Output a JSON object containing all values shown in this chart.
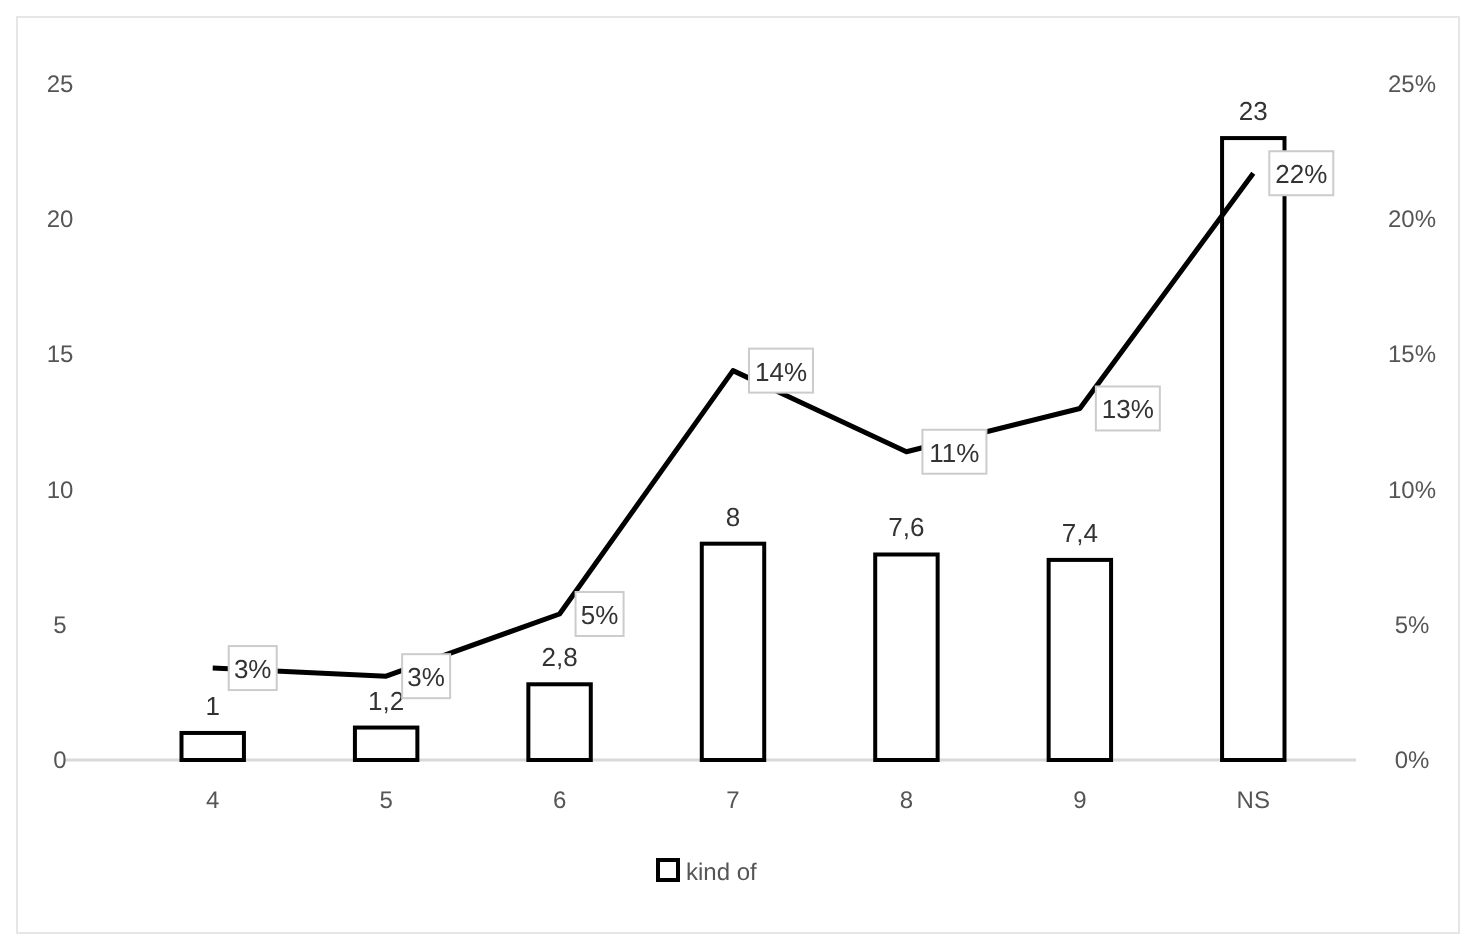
{
  "chart_data": {
    "type": "bar",
    "categories": [
      "4",
      "5",
      "6",
      "7",
      "8",
      "9",
      "NS"
    ],
    "series": [
      {
        "name": "kind of",
        "color": "#ffffff",
        "values": [
          1,
          1.2,
          2.8,
          8,
          7.6,
          7.4,
          23
        ],
        "value_labels": [
          "1",
          "1,2",
          "2,8",
          "8",
          "7,6",
          "7,4",
          "23"
        ]
      },
      {
        "type": "line",
        "axis": "y2",
        "color": "#000000",
        "values": [
          0.034,
          0.031,
          0.054,
          0.144,
          0.114,
          0.13,
          0.217
        ],
        "value_labels": [
          "3%",
          "3%",
          "5%",
          "14%",
          "11%",
          "13%",
          "22%"
        ]
      }
    ],
    "ylim": [
      0,
      25
    ],
    "yticks": [
      0,
      5,
      10,
      15,
      20,
      25
    ],
    "y2lim": [
      0,
      0.25
    ],
    "y2ticks": [
      {
        "value": 0,
        "label": "0%"
      },
      {
        "value": 0.05,
        "label": "5%"
      },
      {
        "value": 0.1,
        "label": "10%"
      },
      {
        "value": 0.15,
        "label": "15%"
      },
      {
        "value": 0.2,
        "label": "20%"
      },
      {
        "value": 0.25,
        "label": "25%"
      }
    ],
    "grid": false,
    "legend": "bottom",
    "marker": "none",
    "line_style": "solid"
  }
}
